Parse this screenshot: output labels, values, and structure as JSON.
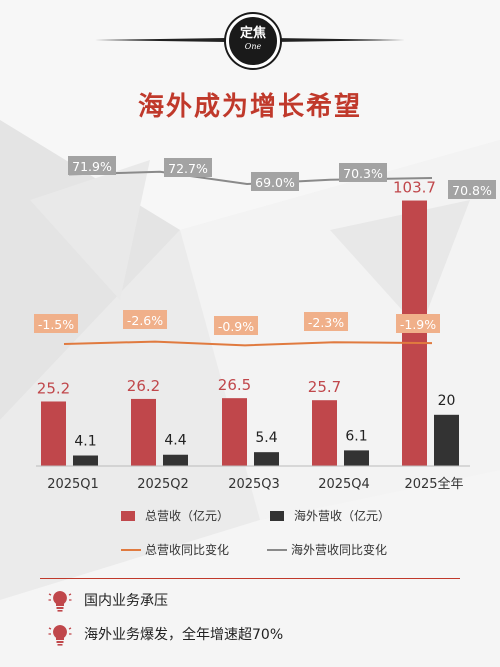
{
  "badge": {
    "main": "定焦",
    "sub": "One"
  },
  "headline": "海外成为增长希望",
  "colors": {
    "total_bar": "#c0474b",
    "overseas_bar": "#333333",
    "total_line": "#e07a3f",
    "overseas_line": "#8a8a8a",
    "total_label_bg": "#f0b08a",
    "overseas_label_bg": "#a3a3a3",
    "headline": "#c0392b"
  },
  "chart_data": {
    "type": "bar",
    "categories": [
      "2025Q1",
      "2025Q2",
      "2025Q3",
      "2025Q4",
      "2025全年"
    ],
    "series": [
      {
        "name": "总营收（亿元）",
        "type": "bar",
        "values": [
          25.2,
          26.2,
          26.5,
          25.7,
          103.7
        ]
      },
      {
        "name": "海外营收（亿元）",
        "type": "bar",
        "values": [
          4.1,
          4.4,
          5.4,
          6.1,
          20
        ]
      },
      {
        "name": "总营收同比变化",
        "type": "line",
        "values": [
          -1.5,
          -2.6,
          -0.9,
          -2.3,
          -1.9
        ],
        "labels": [
          "-1.5%",
          "-2.6%",
          "-0.9%",
          "-2.3%",
          "-1.9%"
        ]
      },
      {
        "name": "海外营收同比变化",
        "type": "line",
        "values": [
          71.9,
          72.7,
          69.0,
          70.3,
          70.8
        ],
        "labels": [
          "71.9%",
          "72.7%",
          "69.0%",
          "70.3%",
          "70.8%"
        ]
      }
    ],
    "bar_labels": {
      "total": [
        "25.2",
        "26.2",
        "26.5",
        "25.7",
        "103.7"
      ],
      "overseas": [
        "4.1",
        "4.4",
        "5.4",
        "6.1",
        "20"
      ]
    },
    "title": "",
    "xlabel": "",
    "ylabel": "",
    "legend_position": "bottom",
    "grid": false
  },
  "notes": [
    {
      "text": "国内业务承压",
      "icon": "bulb-icon"
    },
    {
      "text": "海外业务爆发，全年增速超70%",
      "icon": "bulb-icon"
    }
  ]
}
